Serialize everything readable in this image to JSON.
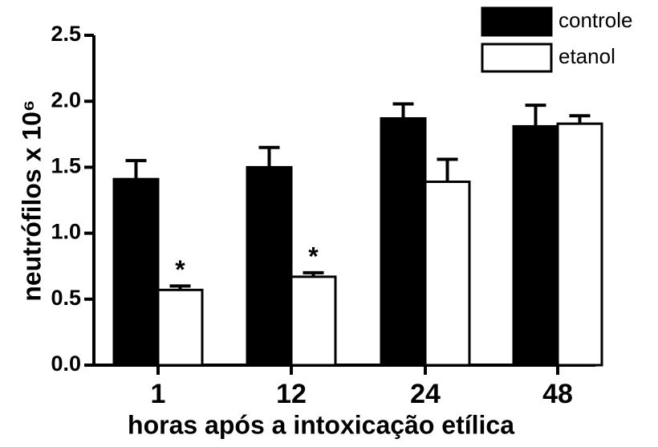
{
  "chart_data": {
    "type": "bar",
    "categories": [
      "1",
      "12",
      "24",
      "48"
    ],
    "series": [
      {
        "name": "controle",
        "color": "#000000",
        "values": [
          1.41,
          1.5,
          1.87,
          1.81
        ],
        "errors": [
          0.14,
          0.15,
          0.11,
          0.16
        ]
      },
      {
        "name": "etanol",
        "color": "#ffffff",
        "values": [
          0.57,
          0.67,
          1.39,
          1.83
        ],
        "errors": [
          0.03,
          0.03,
          0.17,
          0.06
        ]
      }
    ],
    "ylim": [
      0,
      2.5
    ],
    "yticks": [
      {
        "value": 0,
        "label": "0.0"
      },
      0.5,
      {
        "value": 1,
        "label": "1.0"
      },
      1.5,
      {
        "value": 2,
        "label": "2.0"
      },
      2.5
    ],
    "xlabel": "horas após a intoxicação etílica",
    "ylabel": "neutrófilos x 10⁶",
    "annotations": [
      "*",
      "*"
    ],
    "legend": "top-right"
  }
}
